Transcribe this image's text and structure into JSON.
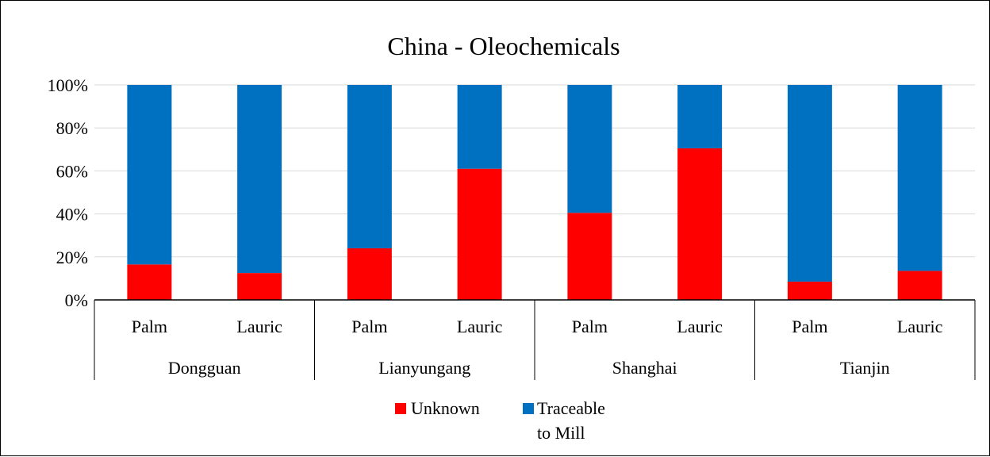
{
  "chart_data": {
    "type": "bar",
    "stacked": true,
    "percent": true,
    "title": "China -  Oleochemicals",
    "groups": [
      "Dongguan",
      "Lianyungang",
      "Shanghai",
      "Tianjin"
    ],
    "categories": [
      "Palm",
      "Lauric",
      "Palm",
      "Lauric",
      "Palm",
      "Lauric",
      "Palm",
      "Lauric"
    ],
    "series": [
      {
        "name": "Unknown",
        "color": "#ff0000",
        "values": [
          16.5,
          12.5,
          24,
          61,
          40.5,
          70.5,
          8.5,
          13.5
        ]
      },
      {
        "name": "Traceable to Mill",
        "color": "#0070c0",
        "values": [
          83.5,
          87.5,
          76,
          39,
          59.5,
          29.5,
          91.5,
          86.5
        ]
      }
    ],
    "legend": {
      "placement": "bottom",
      "entries": [
        {
          "label": "Unknown",
          "color": "#ff0000"
        },
        {
          "label_line1": "Traceable",
          "label_line2": "to Mill",
          "color": "#0070c0"
        }
      ]
    },
    "yticks": [
      "0%",
      "20%",
      "40%",
      "60%",
      "80%",
      "100%"
    ],
    "ylim": [
      0,
      100
    ],
    "grid": true
  }
}
